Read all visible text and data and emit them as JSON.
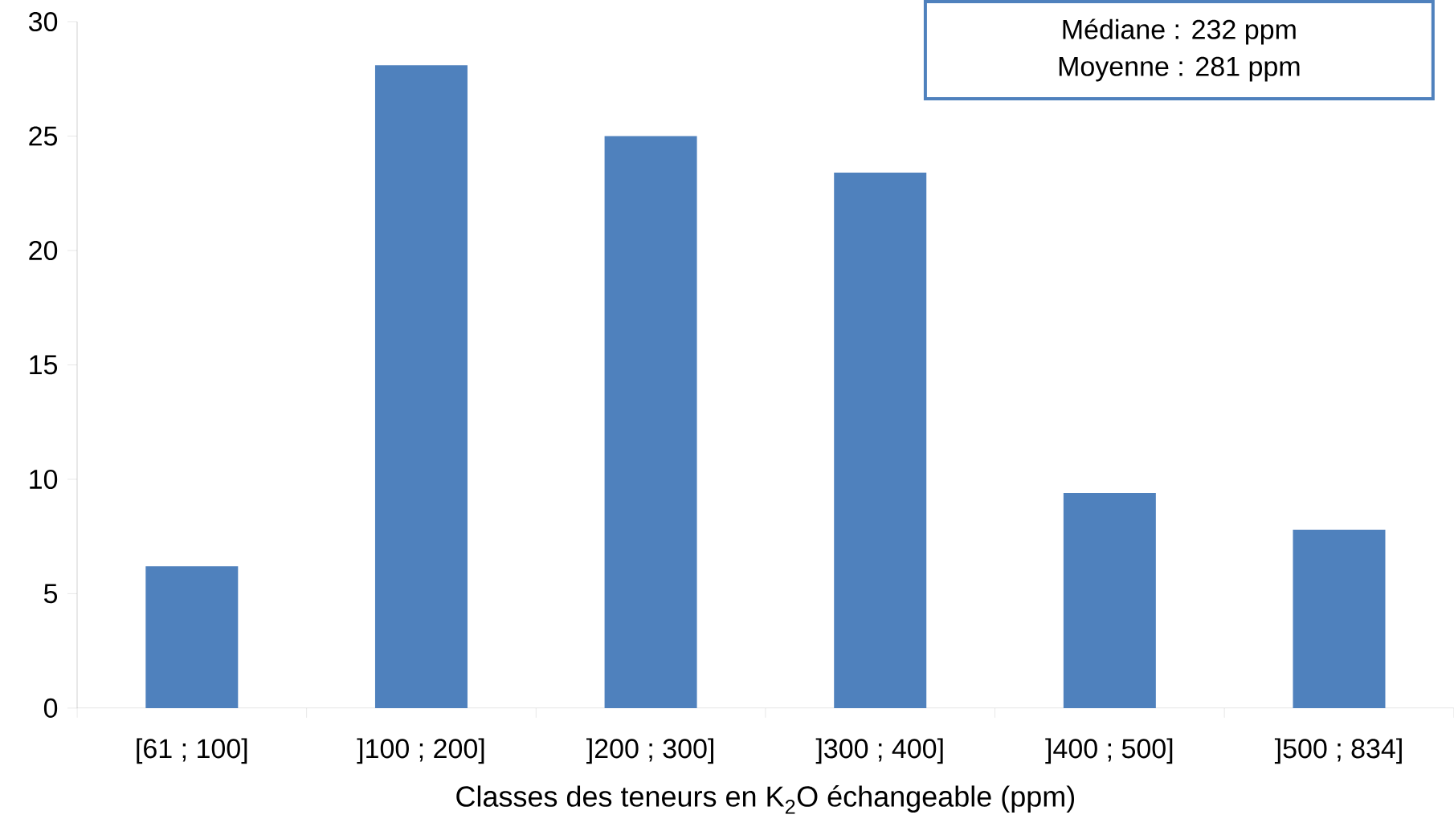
{
  "chart_data": {
    "type": "bar",
    "xlabel": "Classes des teneurs en K$_{2}$O échangeable (ppm)",
    "categories": [
      "[61 ; 100]",
      "]100 ; 200]",
      "]200 ; 300]",
      "]300 ; 400]",
      "]400 ; 500]",
      "]500 ; 834]"
    ],
    "values": [
      6.2,
      28.1,
      25.0,
      23.4,
      9.4,
      7.8
    ],
    "color": "#4f81bd",
    "ylim": [
      0,
      30
    ],
    "yticks": [
      0,
      5,
      10,
      15,
      20,
      25,
      30
    ],
    "annotations": [
      "Médiane : 232  ppm",
      "Moyenne : 281 ppm"
    ]
  }
}
